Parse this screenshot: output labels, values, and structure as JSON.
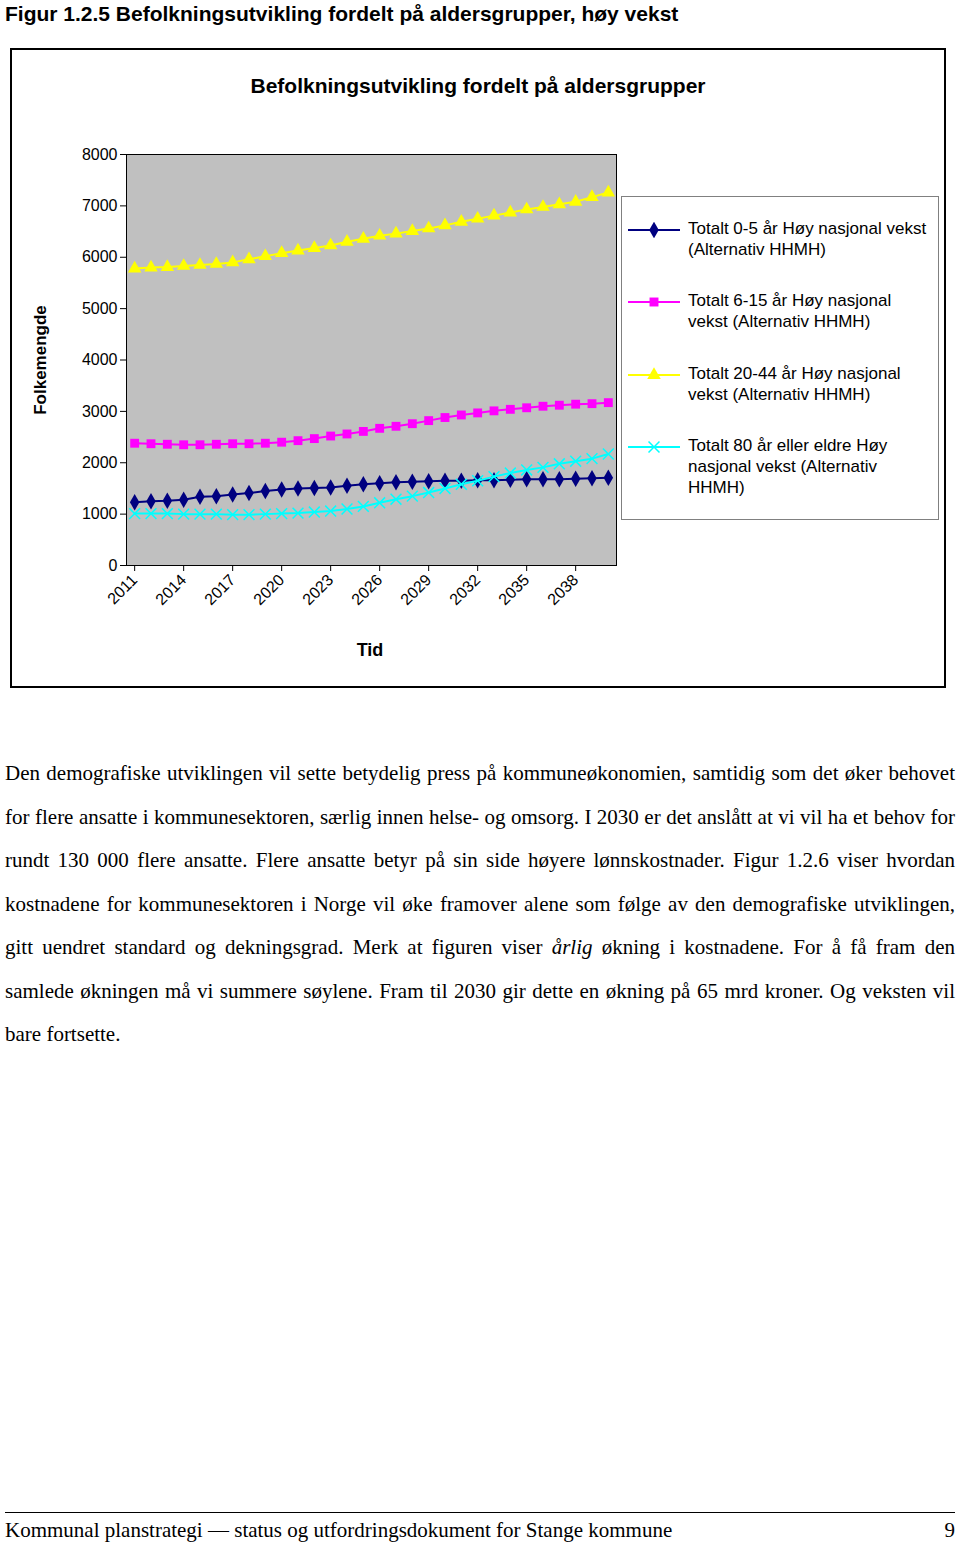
{
  "figure_caption": "Figur 1.2.5 Befolkningsutvikling fordelt på aldersgrupper, høy vekst",
  "chart_data": {
    "type": "line",
    "title": "Befolkningsutvikling fordelt på aldersgrupper",
    "xlabel": "Tid",
    "ylabel": "Folkemengde",
    "x": [
      2011,
      2012,
      2013,
      2014,
      2015,
      2016,
      2017,
      2018,
      2019,
      2020,
      2021,
      2022,
      2023,
      2024,
      2025,
      2026,
      2027,
      2028,
      2029,
      2030,
      2031,
      2032,
      2033,
      2034,
      2035,
      2036,
      2037,
      2038,
      2039,
      2040
    ],
    "xlim": [
      2010.5,
      2040.5
    ],
    "xticks": [
      2011,
      2014,
      2017,
      2020,
      2023,
      2026,
      2029,
      2032,
      2035,
      2038
    ],
    "ylim": [
      0,
      8000
    ],
    "yticks": [
      0,
      1000,
      2000,
      3000,
      4000,
      5000,
      6000,
      7000,
      8000
    ],
    "grid": false,
    "legend": "right",
    "series": [
      {
        "name": "Totalt 0-5 år Høy nasjonal vekst (Alternativ HHMH)",
        "color": "#000080",
        "marker": "diamond",
        "values": [
          1230,
          1250,
          1260,
          1280,
          1340,
          1350,
          1380,
          1410,
          1450,
          1480,
          1500,
          1510,
          1520,
          1550,
          1580,
          1600,
          1620,
          1630,
          1640,
          1650,
          1650,
          1660,
          1660,
          1670,
          1680,
          1680,
          1680,
          1690,
          1700,
          1710
        ]
      },
      {
        "name": "Totalt 6-15 år Høy nasjonal vekst (Alternativ HHMH)",
        "color": "#ff00ff",
        "marker": "square",
        "values": [
          2380,
          2370,
          2360,
          2350,
          2350,
          2360,
          2370,
          2370,
          2380,
          2400,
          2430,
          2470,
          2520,
          2560,
          2610,
          2670,
          2710,
          2760,
          2820,
          2880,
          2930,
          2970,
          3010,
          3040,
          3070,
          3100,
          3120,
          3140,
          3150,
          3170
        ]
      },
      {
        "name": "Totalt 20-44 år Høy nasjonal vekst (Alternativ HHMH)",
        "color": "#ffff00",
        "marker": "triangle",
        "values": [
          5780,
          5800,
          5810,
          5830,
          5850,
          5870,
          5900,
          5960,
          6020,
          6080,
          6130,
          6180,
          6230,
          6300,
          6360,
          6420,
          6460,
          6510,
          6560,
          6620,
          6690,
          6750,
          6810,
          6870,
          6930,
          6980,
          7030,
          7080,
          7170,
          7260
        ]
      },
      {
        "name": "Totalt 80 år eller eldre Høy nasjonal vekst (Alternativ HHMH)",
        "color": "#00ffff",
        "marker": "times",
        "values": [
          1010,
          1010,
          1010,
          1000,
          1000,
          1000,
          990,
          990,
          1000,
          1010,
          1020,
          1040,
          1060,
          1100,
          1150,
          1220,
          1290,
          1350,
          1420,
          1500,
          1580,
          1650,
          1730,
          1800,
          1860,
          1910,
          1980,
          2030,
          2080,
          2170
        ]
      }
    ]
  },
  "paragraph": [
    {
      "text": "Den demografiske utviklingen vil sette betydelig press på kommuneøkonomien, samtidig som det øker behovet for flere ansatte i kommunesektoren, særlig innen helse- og omsorg. I 2030 er det anslått at vi vil ha et behov for rundt 130 000 flere ansatte. Flere ansatte betyr på sin side høyere lønnskostnader. Figur 1.2.6 viser hvordan kostnadene for kommunesektoren i Norge vil øke framover alene som følge av den demografiske utviklingen, gitt uendret standard og dekningsgrad. Merk at figuren viser ",
      "italic": false
    },
    {
      "text": "årlig",
      "italic": true
    },
    {
      "text": " økning i kostnadene. For å få fram den samlede økningen må vi summere søylene. Fram til 2030 gir dette en økning på 65 mrd kroner. Og veksten vil bare fortsette.",
      "italic": false
    }
  ],
  "footer": {
    "text": "Kommunal planstrategi — status og utfordringsdokument for Stange kommune",
    "page": "9"
  }
}
